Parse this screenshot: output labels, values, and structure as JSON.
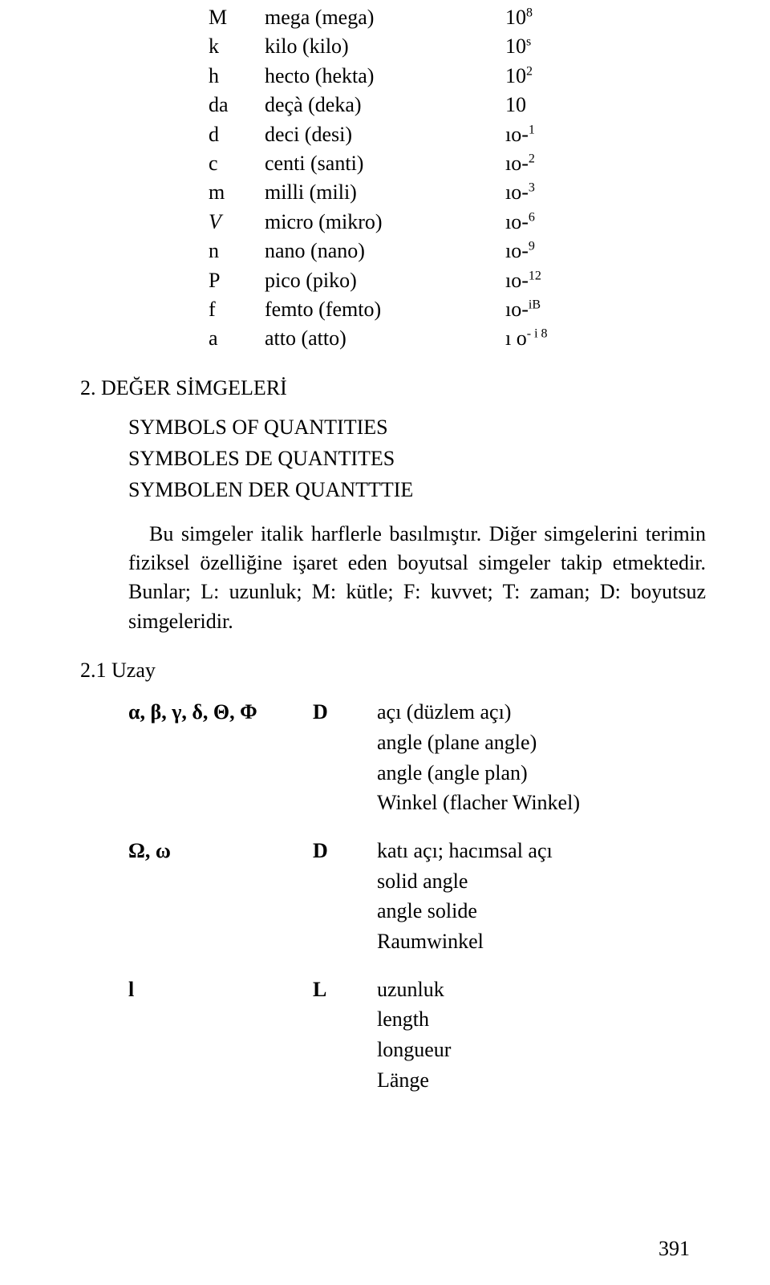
{
  "prefixes": [
    {
      "sym": "M",
      "name": "mega (mega)",
      "base": "10",
      "exp": "8",
      "italic": false
    },
    {
      "sym": "k",
      "name": "kilo (kilo)",
      "base": "10",
      "exp": "s",
      "italic": false
    },
    {
      "sym": "h",
      "name": "hecto (hekta)",
      "base": "10",
      "exp": "2",
      "italic": false
    },
    {
      "sym": "da",
      "name": "deçà (deka)",
      "base": "10",
      "exp": "",
      "italic": false
    },
    {
      "sym": "d",
      "name": "deci (desi)",
      "base": "ıo-",
      "exp": "1",
      "italic": false
    },
    {
      "sym": "c",
      "name": "centi (santi)",
      "base": "ıo-",
      "exp": "2",
      "italic": false
    },
    {
      "sym": "m",
      "name": "milli (mili)",
      "base": "ıo-",
      "exp": "3",
      "italic": false
    },
    {
      "sym": "V",
      "name": "micro (mikro)",
      "base": "ıo-",
      "exp": "6",
      "italic": true
    },
    {
      "sym": "n",
      "name": "nano (nano)",
      "base": "ıo-",
      "exp": "9",
      "italic": false
    },
    {
      "sym": "P",
      "name": "pico (piko)",
      "base": "ıo-",
      "exp": "12",
      "italic": false
    },
    {
      "sym": "f",
      "name": "femto (femto)",
      "base": "ıo-",
      "exp": "iB",
      "italic": false
    },
    {
      "sym": "a",
      "name": "atto (atto)",
      "base": "ı o",
      "exp": "- i 8",
      "italic": false
    }
  ],
  "section2": {
    "heading": "2. DEĞER SİMGELERİ",
    "lines": [
      "SYMBOLS OF QUANTITIES",
      "SYMBOLES DE QUANTITES",
      "SYMBOLEN DER QUANTTTIE"
    ],
    "paragraph": "Bu simgeler italik harflerle basılmıştır. Diğer simgelerini terimin fiziksel özelliğine işaret eden boyutsal simgeler takip etmektedir. Bunlar; L: uzunluk; M: kütle; F: kuvvet; T: zaman; D: boyutsuz simgeleridir."
  },
  "section21": {
    "heading": "2.1 Uzay",
    "rows": [
      {
        "sym": "α, β, γ, δ, Θ, Φ",
        "dim": "D",
        "defs": [
          "açı (düzlem açı)",
          "angle (plane angle)",
          "angle (angle plan)",
          "Winkel  (flacher Winkel)"
        ]
      },
      {
        "sym": "Ω, ω",
        "dim": "D",
        "defs": [
          "katı açı; hacımsal açı",
          "solid angle",
          "angle solide",
          "Raumwinkel"
        ]
      },
      {
        "sym": "l",
        "dim": "L",
        "defs": [
          "uzunluk",
          "length",
          "longueur",
          "Länge"
        ]
      }
    ]
  },
  "pageNumber": "391"
}
